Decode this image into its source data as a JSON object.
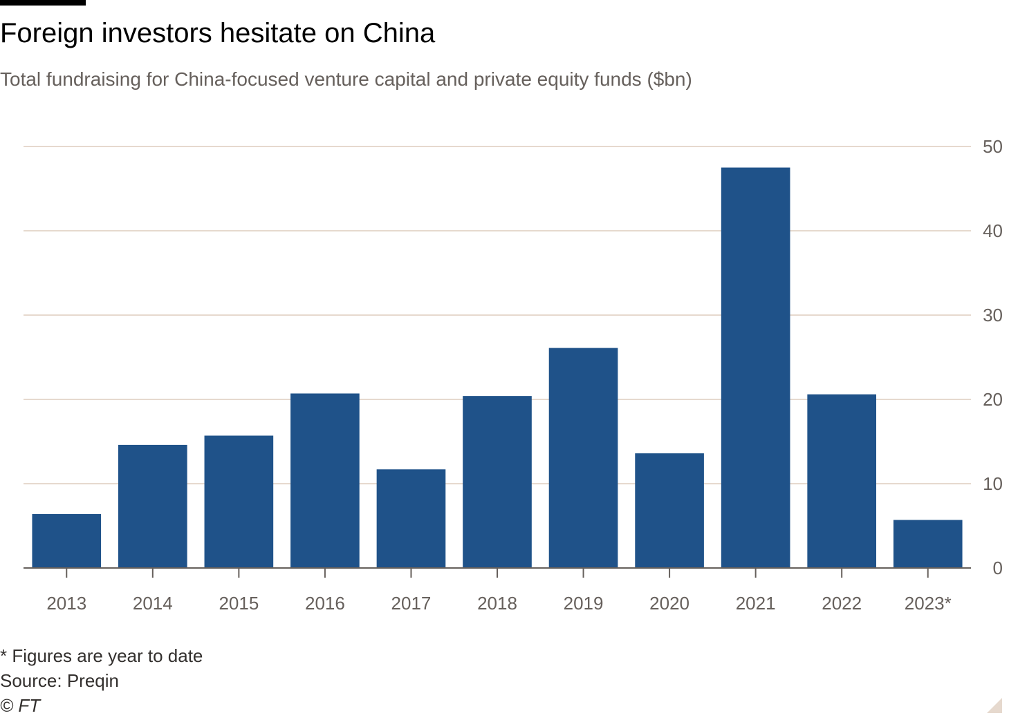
{
  "header": {
    "title": "Foreign investors hesitate on China",
    "subtitle": "Total fundraising for China-focused venture capital and private equity funds ($bn)"
  },
  "footer": {
    "note": "* Figures are year to date",
    "source": "Source: Preqin",
    "credit": "© FT"
  },
  "colors": {
    "bar": "#1f5289",
    "grid": "#e6d9ce",
    "axis_text": "#66605c",
    "baseline": "#66605c"
  },
  "chart_data": {
    "type": "bar",
    "title": "Foreign investors hesitate on China",
    "subtitle": "Total fundraising for China-focused venture capital and private equity funds ($bn)",
    "categories": [
      "2013",
      "2014",
      "2015",
      "2016",
      "2017",
      "2018",
      "2019",
      "2020",
      "2021",
      "2022",
      "2023*"
    ],
    "series": [
      {
        "values": [
          6.4,
          14.6,
          15.7,
          20.7,
          11.7,
          20.4,
          26.1,
          13.6,
          47.5,
          20.6,
          5.7
        ]
      }
    ],
    "ylim": [
      0,
      50
    ],
    "yticks": [
      "0",
      "10",
      "20",
      "30",
      "40",
      "50"
    ],
    "yaxis_position": "right",
    "grid": true
  }
}
